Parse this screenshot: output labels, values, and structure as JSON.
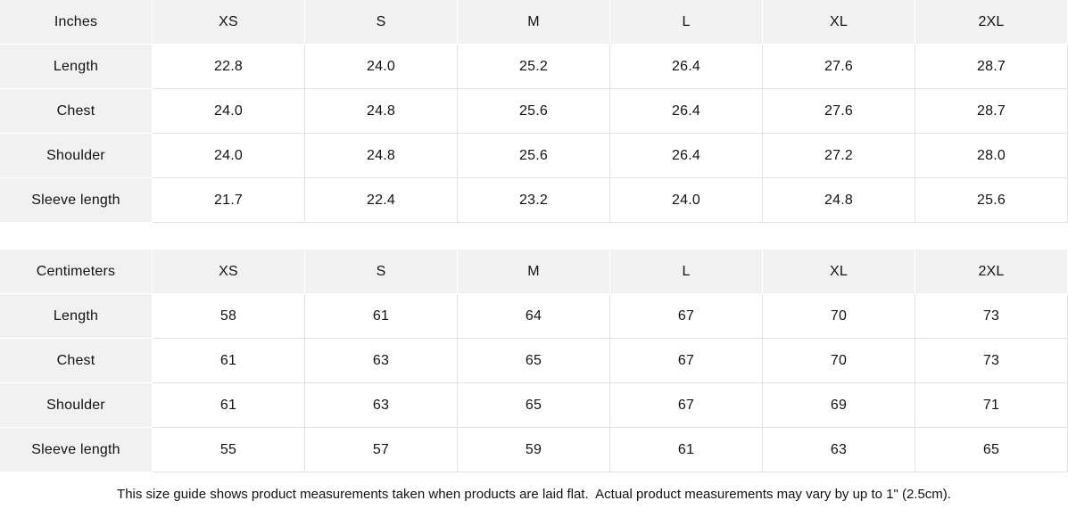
{
  "chart_data": [
    {
      "type": "table",
      "title": "Inches size table",
      "columns": [
        "Inches",
        "XS",
        "S",
        "M",
        "L",
        "XL",
        "2XL"
      ],
      "rows": [
        {
          "label": "Length",
          "values": [
            "22.8",
            "24.0",
            "25.2",
            "26.4",
            "27.6",
            "28.7"
          ]
        },
        {
          "label": "Chest",
          "values": [
            "24.0",
            "24.8",
            "25.6",
            "26.4",
            "27.6",
            "28.7"
          ]
        },
        {
          "label": "Shoulder",
          "values": [
            "24.0",
            "24.8",
            "25.6",
            "26.4",
            "27.2",
            "28.0"
          ]
        },
        {
          "label": "Sleeve length",
          "values": [
            "21.7",
            "22.4",
            "23.2",
            "24.0",
            "24.8",
            "25.6"
          ]
        }
      ]
    },
    {
      "type": "table",
      "title": "Centimeters size table",
      "columns": [
        "Centimeters",
        "XS",
        "S",
        "M",
        "L",
        "XL",
        "2XL"
      ],
      "rows": [
        {
          "label": "Length",
          "values": [
            "58",
            "61",
            "64",
            "67",
            "70",
            "73"
          ]
        },
        {
          "label": "Chest",
          "values": [
            "61",
            "63",
            "65",
            "67",
            "70",
            "73"
          ]
        },
        {
          "label": "Shoulder",
          "values": [
            "61",
            "63",
            "65",
            "67",
            "69",
            "71"
          ]
        },
        {
          "label": "Sleeve length",
          "values": [
            "55",
            "57",
            "59",
            "61",
            "63",
            "65"
          ]
        }
      ]
    }
  ],
  "footnote": "This size guide shows product measurements taken when products are laid flat.  Actual product measurements may vary by up to 1\" (2.5cm).",
  "colors": {
    "shaded_cell_bg": "#f1f1f1",
    "grid_line": "#e1e1e1",
    "text": "#121212",
    "page_bg": "#ffffff"
  }
}
